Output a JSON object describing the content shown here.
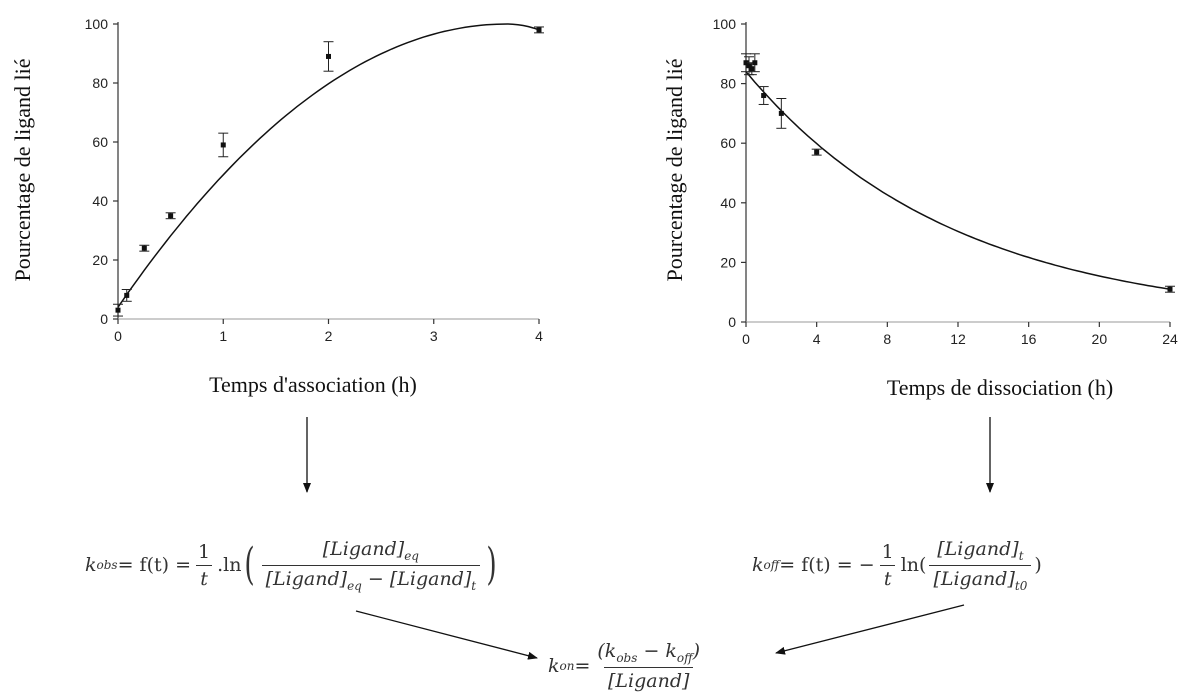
{
  "chart_data": [
    {
      "type": "line",
      "ylabel": "Pourcentage de ligand lié",
      "xlabel": "Temps d'association (h)",
      "xlim": [
        0,
        4
      ],
      "ylim": [
        0,
        100
      ],
      "xticks": [
        "0",
        "1",
        "2",
        "3",
        "4"
      ],
      "yticks": [
        "0",
        "20",
        "40",
        "60",
        "80",
        "100"
      ],
      "points": [
        {
          "x": 0,
          "y": 3,
          "err": 2
        },
        {
          "x": 0.083,
          "y": 8,
          "err": 2
        },
        {
          "x": 0.25,
          "y": 24,
          "err": 1
        },
        {
          "x": 0.5,
          "y": 35,
          "err": 1
        },
        {
          "x": 1,
          "y": 59,
          "err": 4
        },
        {
          "x": 2,
          "y": 89,
          "err": 5
        },
        {
          "x": 4,
          "y": 98,
          "err": 1
        }
      ],
      "fit": "association"
    },
    {
      "type": "line",
      "ylabel": "Pourcentage de ligand lié",
      "xlabel": "Temps de dissociation (h)",
      "xlim": [
        0,
        24
      ],
      "ylim": [
        0,
        100
      ],
      "xticks": [
        "0",
        "4",
        "8",
        "12",
        "16",
        "20",
        "24"
      ],
      "yticks": [
        "0",
        "20",
        "40",
        "60",
        "80",
        "100"
      ],
      "points": [
        {
          "x": 0,
          "y": 87,
          "err": 3
        },
        {
          "x": 0.17,
          "y": 86,
          "err": 3
        },
        {
          "x": 0.33,
          "y": 85,
          "err": 2
        },
        {
          "x": 0.5,
          "y": 87,
          "err": 3
        },
        {
          "x": 1,
          "y": 76,
          "err": 3
        },
        {
          "x": 2,
          "y": 70,
          "err": 5
        },
        {
          "x": 4,
          "y": 57,
          "err": 1
        },
        {
          "x": 24,
          "y": 11,
          "err": 1
        }
      ],
      "fit": "dissociation"
    }
  ],
  "equations": {
    "kobs": {
      "lhs": "k",
      "lhs_sub": "obs",
      "mid": " = f(t) = ",
      "frac_num": "1",
      "frac_den": "t",
      "ln": ".ln",
      "num": "[Ligand]",
      "num_sub": "eq",
      "den_a": "[Ligand]",
      "den_a_sub": "eq",
      "den_minus": " − ",
      "den_b": "[Ligand]",
      "den_b_sub": "t"
    },
    "koff": {
      "lhs": "k",
      "lhs_sub": "off",
      "mid": " = f(t) = −",
      "frac_num": "1",
      "frac_den": "t",
      "ln": "ln(",
      "num": "[Ligand]",
      "num_sub": "t",
      "den": "[Ligand]",
      "den_sub": "t0",
      "close": ")"
    },
    "kon": {
      "lhs": "k",
      "lhs_sub": "on",
      "eq": " = ",
      "num": "(k",
      "num_sub1": "obs",
      "num_mid": " − k",
      "num_sub2": "off",
      "num_close": ")",
      "den": "[Ligand]"
    }
  }
}
